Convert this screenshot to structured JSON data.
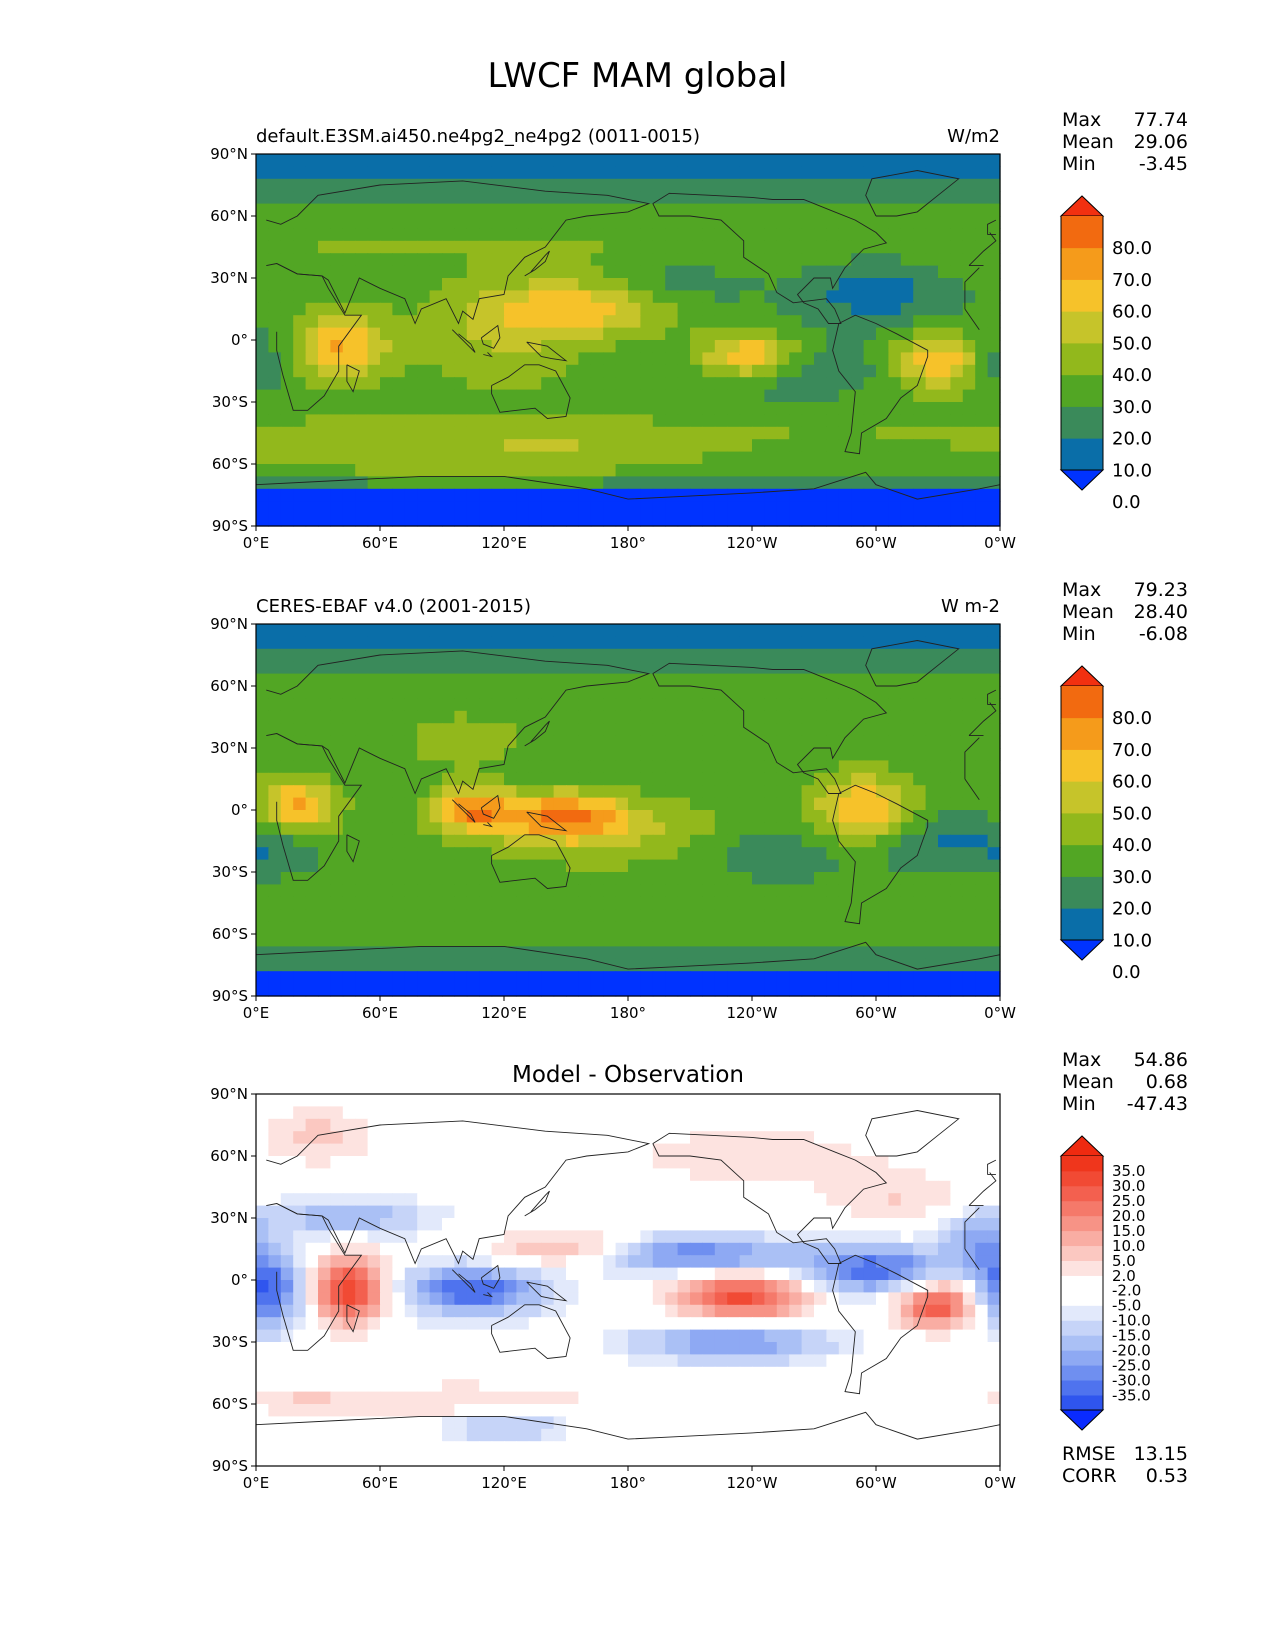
{
  "figure": {
    "title": "LWCF MAM global"
  },
  "colors": {
    "main_levels": [
      "#0033ff",
      "#0a6ea8",
      "#3a8a5a",
      "#52a624",
      "#92b81c",
      "#c6c42a",
      "#f6c22a",
      "#f59b1b",
      "#f26a10",
      "#f23010"
    ],
    "diff_levels": [
      "#0a2bff",
      "#2f55ee",
      "#4f73ee",
      "#6f8ff0",
      "#8ea9f3",
      "#aac0f5",
      "#c6d4f8",
      "#e2e9fb",
      "#ffffff",
      "#ffffff",
      "#fde3e0",
      "#fbc8c1",
      "#f9ada3",
      "#f79386",
      "#f5796a",
      "#f3604f",
      "#f14a34",
      "#ef361c",
      "#ef2a10"
    ],
    "land_outline": "#222222"
  },
  "chart_data": [
    {
      "type": "heatmap",
      "panel": "model",
      "title_left": "default.E3SM.ai450.ne4pg2_ne4pg2 (0011-0015)",
      "title_right": "W/m2",
      "stats": [
        {
          "label": "Max",
          "value": "77.74"
        },
        {
          "label": "Mean",
          "value": "29.06"
        },
        {
          "label": "Min",
          "value": "-3.45"
        }
      ],
      "x_ticks": [
        "0°E",
        "60°E",
        "120°E",
        "180°",
        "120°W",
        "60°W",
        "0°W"
      ],
      "y_ticks": [
        "90°N",
        "60°N",
        "30°N",
        "0°",
        "30°S",
        "60°S",
        "90°S"
      ],
      "xlim": [
        0,
        360
      ],
      "ylim": [
        -90,
        90
      ],
      "colorbar_labels": [
        "80.0",
        "70.0",
        "60.0",
        "50.0",
        "40.0",
        "30.0",
        "20.0",
        "10.0",
        "0.0"
      ],
      "colorbar_levels": [
        -10,
        0,
        10,
        20,
        30,
        40,
        50,
        60,
        70,
        80,
        90
      ]
    },
    {
      "type": "heatmap",
      "panel": "observation",
      "title_left": "CERES-EBAF v4.0 (2001-2015)",
      "title_right": "W m-2",
      "stats": [
        {
          "label": "Max",
          "value": "79.23"
        },
        {
          "label": "Mean",
          "value": "28.40"
        },
        {
          "label": "Min",
          "value": "-6.08"
        }
      ],
      "x_ticks": [
        "0°E",
        "60°E",
        "120°E",
        "180°",
        "120°W",
        "60°W",
        "0°W"
      ],
      "y_ticks": [
        "90°N",
        "60°N",
        "30°N",
        "0°",
        "30°S",
        "60°S",
        "90°S"
      ],
      "xlim": [
        0,
        360
      ],
      "ylim": [
        -90,
        90
      ],
      "colorbar_labels": [
        "80.0",
        "70.0",
        "60.0",
        "50.0",
        "40.0",
        "30.0",
        "20.0",
        "10.0",
        "0.0"
      ],
      "colorbar_levels": [
        -10,
        0,
        10,
        20,
        30,
        40,
        50,
        60,
        70,
        80,
        90
      ]
    },
    {
      "type": "heatmap",
      "panel": "difference",
      "title_center": "Model - Observation",
      "stats": [
        {
          "label": "Max",
          "value": "54.86"
        },
        {
          "label": "Mean",
          "value": "0.68"
        },
        {
          "label": "Min",
          "value": "-47.43"
        }
      ],
      "footer_stats": [
        {
          "label": "RMSE",
          "value": "13.15"
        },
        {
          "label": "CORR",
          "value": "0.53"
        }
      ],
      "x_ticks": [
        "0°E",
        "60°E",
        "120°E",
        "180°",
        "120°W",
        "60°W",
        "0°W"
      ],
      "y_ticks": [
        "90°N",
        "60°N",
        "30°N",
        "0°",
        "30°S",
        "60°S",
        "90°S"
      ],
      "xlim": [
        0,
        360
      ],
      "ylim": [
        -90,
        90
      ],
      "colorbar_labels": [
        "35.0",
        "30.0",
        "25.0",
        "20.0",
        "15.0",
        "10.0",
        "5.0",
        "2.0",
        "-2.0",
        "-5.0",
        "-10.0",
        "-15.0",
        "-20.0",
        "-25.0",
        "-30.0",
        "-35.0"
      ],
      "colorbar_levels": [
        -40,
        -35,
        -30,
        -25,
        -20,
        -15,
        -10,
        -5,
        -2,
        2,
        5,
        10,
        15,
        20,
        25,
        30,
        35,
        40
      ]
    }
  ]
}
